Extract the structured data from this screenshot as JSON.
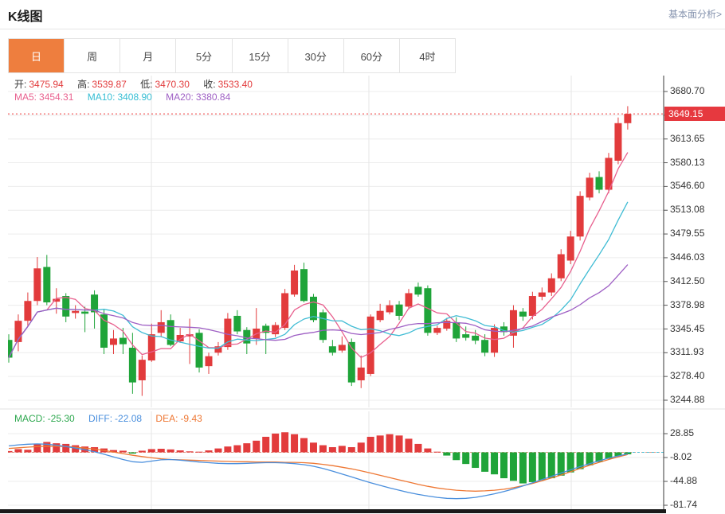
{
  "header": {
    "title": "K线图",
    "link": "基本面分析>"
  },
  "tabs": {
    "items": [
      "日",
      "周",
      "月",
      "5分",
      "15分",
      "30分",
      "60分",
      "4时"
    ],
    "selected_index": 0
  },
  "ohlc_bar": {
    "open_label": "开:",
    "open": "3475.94",
    "high_label": "高:",
    "high": "3539.87",
    "low_label": "低:",
    "low": "3470.30",
    "close_label": "收:",
    "close": "3533.40"
  },
  "ma_bar": {
    "ma5_label": "MA5:",
    "ma5": "3454.31",
    "ma10_label": "MA10:",
    "ma10": "3408.90",
    "ma20_label": "MA20:",
    "ma20": "3380.84"
  },
  "macd_bar": {
    "macd_label": "MACD:",
    "macd": "-25.30",
    "diff_label": "DIFF:",
    "diff": "-22.08",
    "dea_label": "DEA:",
    "dea": "-9.43"
  },
  "price_axis": {
    "current_price": "3649.15"
  },
  "colors": {
    "up": "#e23b3c",
    "down": "#1fa439",
    "ma5": "#e8608e",
    "ma10": "#3fbcd4",
    "ma20": "#9e5fc4",
    "diff": "#4a8fdd",
    "dea": "#ee7733",
    "tab_selected": "#ee7e3e",
    "link": "#8593ae",
    "price_line": "#f03e3e",
    "price_tag_bg": "#e6393f",
    "grid": "#ececec",
    "axis_line": "#3a3a3a"
  },
  "chart_data": {
    "type": "candlestick_with_macd",
    "title": "K线图",
    "x_count": 66,
    "price_axis_ticks": [
      3680.7,
      3613.65,
      3580.13,
      3546.6,
      3513.08,
      3479.55,
      3446.03,
      3412.5,
      3378.98,
      3345.45,
      3311.93,
      3278.4,
      3244.88
    ],
    "current_price": 3649.15,
    "ma_periods": [
      5,
      10,
      20
    ],
    "candles_format": [
      "open",
      "high",
      "low",
      "close"
    ],
    "candles": [
      [
        3330,
        3338,
        3298,
        3305
      ],
      [
        3327,
        3366,
        3314,
        3357
      ],
      [
        3357,
        3397,
        3349,
        3385
      ],
      [
        3385,
        3447,
        3379,
        3431
      ],
      [
        3433,
        3450,
        3379,
        3383
      ],
      [
        3384,
        3403,
        3367,
        3388
      ],
      [
        3392,
        3396,
        3355,
        3363
      ],
      [
        3368,
        3379,
        3360,
        3371
      ],
      [
        3370,
        3377,
        3341,
        3367
      ],
      [
        3394,
        3400,
        3346,
        3369
      ],
      [
        3366,
        3374,
        3310,
        3319
      ],
      [
        3323,
        3344,
        3310,
        3332
      ],
      [
        3333,
        3347,
        3310,
        3324
      ],
      [
        3319,
        3340,
        3254,
        3270
      ],
      [
        3273,
        3308,
        3251,
        3302
      ],
      [
        3301,
        3353,
        3299,
        3338
      ],
      [
        3340,
        3372,
        3334,
        3355
      ],
      [
        3358,
        3366,
        3321,
        3323
      ],
      [
        3328,
        3347,
        3326,
        3337
      ],
      [
        3335,
        3360,
        3296,
        3338
      ],
      [
        3340,
        3345,
        3284,
        3291
      ],
      [
        3293,
        3312,
        3282,
        3307
      ],
      [
        3312,
        3327,
        3308,
        3321
      ],
      [
        3320,
        3368,
        3316,
        3360
      ],
      [
        3364,
        3372,
        3338,
        3342
      ],
      [
        3344,
        3348,
        3310,
        3325
      ],
      [
        3332,
        3375,
        3323,
        3346
      ],
      [
        3350,
        3353,
        3310,
        3340
      ],
      [
        3338,
        3355,
        3334,
        3351
      ],
      [
        3347,
        3402,
        3344,
        3396
      ],
      [
        3394,
        3436,
        3391,
        3428
      ],
      [
        3430,
        3439,
        3383,
        3385
      ],
      [
        3391,
        3395,
        3355,
        3358
      ],
      [
        3369,
        3373,
        3326,
        3330
      ],
      [
        3321,
        3330,
        3308,
        3312
      ],
      [
        3315,
        3335,
        3312,
        3323
      ],
      [
        3327,
        3332,
        3265,
        3270
      ],
      [
        3273,
        3308,
        3262,
        3291
      ],
      [
        3282,
        3366,
        3279,
        3363
      ],
      [
        3358,
        3381,
        3355,
        3371
      ],
      [
        3369,
        3386,
        3366,
        3379
      ],
      [
        3380,
        3385,
        3358,
        3364
      ],
      [
        3377,
        3402,
        3373,
        3396
      ],
      [
        3405,
        3411,
        3391,
        3394
      ],
      [
        3403,
        3407,
        3336,
        3340
      ],
      [
        3340,
        3350,
        3337,
        3347
      ],
      [
        3346,
        3361,
        3343,
        3357
      ],
      [
        3355,
        3362,
        3327,
        3332
      ],
      [
        3338,
        3349,
        3329,
        3333
      ],
      [
        3336,
        3344,
        3324,
        3329
      ],
      [
        3330,
        3338,
        3307,
        3312
      ],
      [
        3312,
        3352,
        3306,
        3347
      ],
      [
        3349,
        3355,
        3336,
        3341
      ],
      [
        3336,
        3379,
        3319,
        3372
      ],
      [
        3370,
        3375,
        3357,
        3363
      ],
      [
        3364,
        3398,
        3359,
        3392
      ],
      [
        3391,
        3404,
        3386,
        3397
      ],
      [
        3397,
        3424,
        3392,
        3417
      ],
      [
        3417,
        3458,
        3413,
        3451
      ],
      [
        3442,
        3484,
        3437,
        3476
      ],
      [
        3475.94,
        3539.87,
        3470.3,
        3533.4
      ],
      [
        3531,
        3566,
        3527,
        3559
      ],
      [
        3560,
        3568,
        3537,
        3542
      ],
      [
        3542,
        3594,
        3537,
        3587
      ],
      [
        3583,
        3644,
        3578,
        3636
      ],
      [
        3636,
        3660,
        3627,
        3649.15
      ]
    ],
    "macd": {
      "axis_ticks": [
        28.85,
        -8.02,
        -44.88,
        -81.74
      ],
      "histogram": [
        2,
        5,
        4,
        13,
        16,
        14,
        13,
        11,
        9,
        8,
        6,
        3.5,
        2.5,
        -2,
        2.5,
        5,
        5.5,
        4.5,
        3,
        1.5,
        1,
        3,
        6,
        9,
        11,
        14,
        18,
        24,
        29,
        31,
        28,
        22,
        15,
        11,
        8,
        10,
        8,
        15,
        24,
        26,
        28,
        26,
        21,
        13,
        6,
        1,
        -5,
        -12,
        -18,
        -24,
        -30,
        -34,
        -40,
        -44,
        -48,
        -46,
        -43,
        -40,
        -36,
        -31,
        -26,
        -20,
        -15,
        -10,
        -6,
        -3
      ],
      "diff": [
        10,
        11.5,
        12.5,
        13,
        12.5,
        11,
        9,
        6.5,
        4,
        1,
        -3,
        -7,
        -11,
        -14.5,
        -15.5,
        -13.5,
        -11.5,
        -11,
        -12,
        -13.5,
        -15,
        -16,
        -17,
        -17.5,
        -17.5,
        -17,
        -16.5,
        -16,
        -16,
        -16.5,
        -17.5,
        -19,
        -21.5,
        -25,
        -29,
        -33.5,
        -38,
        -42.5,
        -47,
        -51,
        -55,
        -58.5,
        -62,
        -65,
        -67.5,
        -69.5,
        -71,
        -71.5,
        -71,
        -69.5,
        -67,
        -64,
        -60.5,
        -56.5,
        -52,
        -47,
        -42,
        -37,
        -32,
        -27,
        -22,
        -17.5,
        -13,
        -9,
        -5.5,
        -2.5
      ],
      "dea": [
        6,
        7,
        8,
        9,
        9.5,
        9.5,
        9,
        8,
        6.5,
        5,
        3,
        0.5,
        -2,
        -4.5,
        -6.5,
        -8.5,
        -10,
        -11,
        -11.5,
        -12,
        -12.5,
        -13,
        -13.5,
        -14,
        -14.5,
        -14.5,
        -15,
        -15,
        -15,
        -15.5,
        -15.5,
        -16,
        -17,
        -18.5,
        -20.5,
        -23,
        -25.5,
        -28.5,
        -32,
        -35.5,
        -39,
        -42.5,
        -46,
        -49.5,
        -52.5,
        -55,
        -57,
        -58.5,
        -59.5,
        -60,
        -59.5,
        -58.5,
        -57,
        -54.5,
        -51.5,
        -48,
        -44,
        -39.5,
        -35,
        -30,
        -25,
        -20,
        -15.5,
        -11,
        -7,
        -3.5
      ]
    }
  }
}
